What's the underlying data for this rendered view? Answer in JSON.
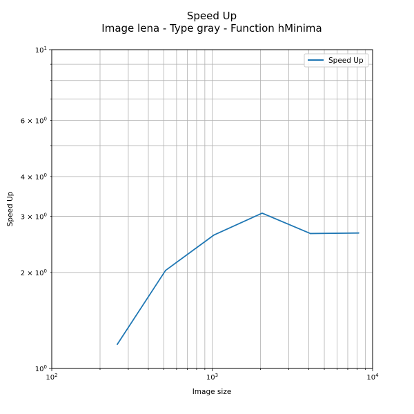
{
  "chart_data": {
    "type": "line",
    "title": "Speed Up",
    "subtitle": "Image lena - Type gray - Function hMinima",
    "xlabel": "Image size",
    "ylabel": "Speed Up",
    "xscale": "log",
    "yscale": "log",
    "xlim": [
      100,
      10000
    ],
    "ylim": [
      1,
      10
    ],
    "grid": true,
    "legend_position": "top-right",
    "x_tick_labels": [
      {
        "base": "10",
        "exp": "2",
        "value": 100
      },
      {
        "base": "10",
        "exp": "3",
        "value": 1000
      },
      {
        "base": "10",
        "exp": "4",
        "value": 10000
      }
    ],
    "y_tick_labels": [
      {
        "base": "10",
        "exp": "0",
        "value": 1
      },
      {
        "base": "2 × 10",
        "exp": "0",
        "value": 2
      },
      {
        "base": "3 × 10",
        "exp": "0",
        "value": 3
      },
      {
        "base": "4 × 10",
        "exp": "0",
        "value": 4
      },
      {
        "base": "6 × 10",
        "exp": "0",
        "value": 6
      },
      {
        "base": "10",
        "exp": "1",
        "value": 10
      }
    ],
    "series": [
      {
        "name": "Speed Up",
        "color": "#1f77b4",
        "x": [
          256,
          512,
          1024,
          2048,
          4096,
          8192
        ],
        "y": [
          1.19,
          2.03,
          2.62,
          3.07,
          2.65,
          2.66
        ]
      }
    ]
  }
}
